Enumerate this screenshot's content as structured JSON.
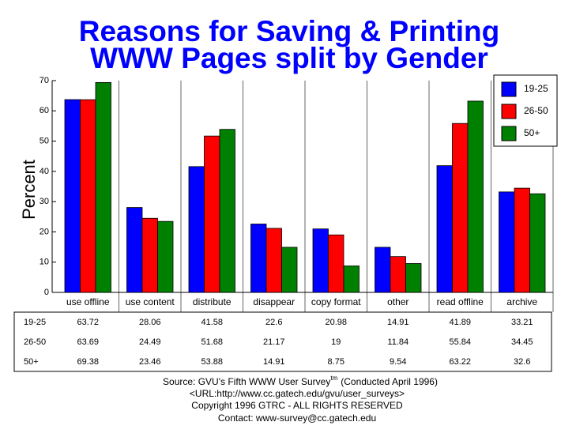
{
  "chart_data": {
    "type": "bar",
    "title": [
      "Reasons for Saving & Printing",
      "WWW Pages split by Gender"
    ],
    "y_label": "Percent",
    "categories": [
      "use offline",
      "use content",
      "distribute",
      "disappear",
      "copy format",
      "other",
      "read offline",
      "archive"
    ],
    "series": [
      {
        "name": "19-25",
        "color": "#0000ff",
        "values": [
          63.72,
          28.06,
          41.58,
          22.6,
          20.98,
          14.91,
          41.89,
          33.21
        ]
      },
      {
        "name": "26-50",
        "color": "#ff0000",
        "values": [
          63.69,
          24.49,
          51.68,
          21.17,
          19,
          11.84,
          55.84,
          34.45
        ]
      },
      {
        "name": "50+",
        "color": "#008000",
        "values": [
          69.38,
          23.46,
          53.88,
          14.91,
          8.75,
          9.54,
          63.22,
          32.6
        ]
      }
    ],
    "ylim": [
      0,
      70
    ],
    "yticks": [
      0,
      10,
      20,
      30,
      40,
      50,
      60,
      70
    ],
    "legend": "top-right",
    "source": [
      "Source: GVU's Fifth WWW User Survey",
      "tm",
      "(Conducted April 1996)"
    ],
    "notes": [
      "<URL:http://www.cc.gatech.edu/gvu/user_surveys>",
      "Copyright 1996 GTRC -  ALL RIGHTS RESERVED",
      "Contact: www-survey@cc.gatech.edu"
    ]
  }
}
